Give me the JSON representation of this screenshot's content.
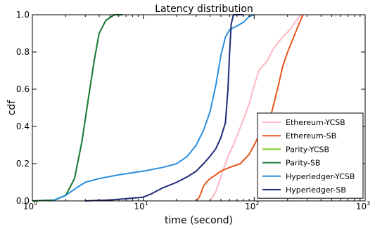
{
  "chart_data": {
    "type": "line",
    "title": "Latency distribution",
    "xlabel": "time (second)",
    "ylabel": "cdf",
    "xscale": "log",
    "xlim": [
      1,
      1000
    ],
    "ylim": [
      0,
      1.0
    ],
    "x_ticks": [
      1,
      10,
      100,
      1000
    ],
    "x_tick_labels": [
      {
        "base": "10",
        "exp": "0"
      },
      {
        "base": "10",
        "exp": "1"
      },
      {
        "base": "10",
        "exp": "2"
      },
      {
        "base": "10",
        "exp": "3"
      }
    ],
    "y_ticks": [
      0,
      0.2,
      0.4,
      0.6,
      0.8,
      1.0
    ],
    "y_tick_labels": [
      "0.0",
      "0.2",
      "0.4",
      "0.6",
      "0.8",
      "1.0"
    ],
    "grid": false,
    "legend_position": "lower-right",
    "series": [
      {
        "name": "Ethereum-YCSB",
        "color": "#ffb6c1",
        "points": [
          [
            40,
            0
          ],
          [
            45,
            0.05
          ],
          [
            50,
            0.13
          ],
          [
            55,
            0.2
          ],
          [
            60,
            0.26
          ],
          [
            65,
            0.3
          ],
          [
            70,
            0.35
          ],
          [
            80,
            0.44
          ],
          [
            90,
            0.52
          ],
          [
            100,
            0.62
          ],
          [
            110,
            0.7
          ],
          [
            130,
            0.75
          ],
          [
            150,
            0.82
          ],
          [
            180,
            0.88
          ],
          [
            210,
            0.92
          ],
          [
            240,
            0.97
          ],
          [
            265,
            1.0
          ]
        ]
      },
      {
        "name": "Ethereum-SB",
        "color": "#e8551c",
        "points": [
          [
            30,
            0
          ],
          [
            32,
            0.02
          ],
          [
            35,
            0.08
          ],
          [
            37,
            0.1
          ],
          [
            40,
            0.12
          ],
          [
            45,
            0.14
          ],
          [
            50,
            0.16
          ],
          [
            60,
            0.18
          ],
          [
            75,
            0.2
          ],
          [
            90,
            0.25
          ],
          [
            100,
            0.3
          ],
          [
            110,
            0.35
          ],
          [
            120,
            0.38
          ],
          [
            140,
            0.45
          ],
          [
            150,
            0.52
          ],
          [
            165,
            0.62
          ],
          [
            180,
            0.72
          ],
          [
            200,
            0.8
          ],
          [
            220,
            0.86
          ],
          [
            245,
            0.93
          ],
          [
            275,
            1.0
          ]
        ]
      },
      {
        "name": "Parity-YCSB",
        "color": "#7fcc1e",
        "points": [
          [
            1,
            0
          ],
          [
            1.6,
            0.005
          ],
          [
            2.0,
            0.03
          ],
          [
            2.4,
            0.12
          ],
          [
            2.8,
            0.32
          ],
          [
            3.2,
            0.55
          ],
          [
            3.6,
            0.75
          ],
          [
            4.0,
            0.9
          ],
          [
            4.6,
            0.97
          ],
          [
            5.5,
            1.0
          ],
          [
            6.5,
            1.0
          ]
        ]
      },
      {
        "name": "Parity-SB",
        "color": "#1a7a3c",
        "points": [
          [
            1,
            0
          ],
          [
            1.6,
            0.005
          ],
          [
            2.0,
            0.03
          ],
          [
            2.4,
            0.12
          ],
          [
            2.8,
            0.32
          ],
          [
            3.2,
            0.55
          ],
          [
            3.6,
            0.75
          ],
          [
            4.0,
            0.9
          ],
          [
            4.6,
            0.97
          ],
          [
            5.5,
            1.0
          ],
          [
            6.5,
            1.0
          ]
        ]
      },
      {
        "name": "Hyperledger-YCSB",
        "color": "#2a8ee0",
        "points": [
          [
            1.5,
            0
          ],
          [
            2,
            0.03
          ],
          [
            2.5,
            0.07
          ],
          [
            3,
            0.1
          ],
          [
            4,
            0.12
          ],
          [
            6,
            0.14
          ],
          [
            10,
            0.16
          ],
          [
            15,
            0.18
          ],
          [
            20,
            0.2
          ],
          [
            25,
            0.24
          ],
          [
            30,
            0.3
          ],
          [
            35,
            0.38
          ],
          [
            40,
            0.48
          ],
          [
            45,
            0.62
          ],
          [
            50,
            0.78
          ],
          [
            55,
            0.88
          ],
          [
            60,
            0.92
          ],
          [
            70,
            0.94
          ],
          [
            80,
            0.96
          ],
          [
            90,
            0.99
          ],
          [
            100,
            1.0
          ]
        ]
      },
      {
        "name": "Hyperledger-SB",
        "color": "#1f2b7a",
        "points": [
          [
            3,
            0
          ],
          [
            5,
            0.005
          ],
          [
            10,
            0.02
          ],
          [
            12,
            0.04
          ],
          [
            15,
            0.07
          ],
          [
            20,
            0.1
          ],
          [
            25,
            0.13
          ],
          [
            30,
            0.16
          ],
          [
            35,
            0.2
          ],
          [
            40,
            0.24
          ],
          [
            45,
            0.28
          ],
          [
            50,
            0.34
          ],
          [
            55,
            0.42
          ],
          [
            58,
            0.6
          ],
          [
            60,
            0.8
          ],
          [
            62,
            0.95
          ],
          [
            65,
            1.0
          ],
          [
            80,
            1.0
          ]
        ]
      }
    ]
  }
}
